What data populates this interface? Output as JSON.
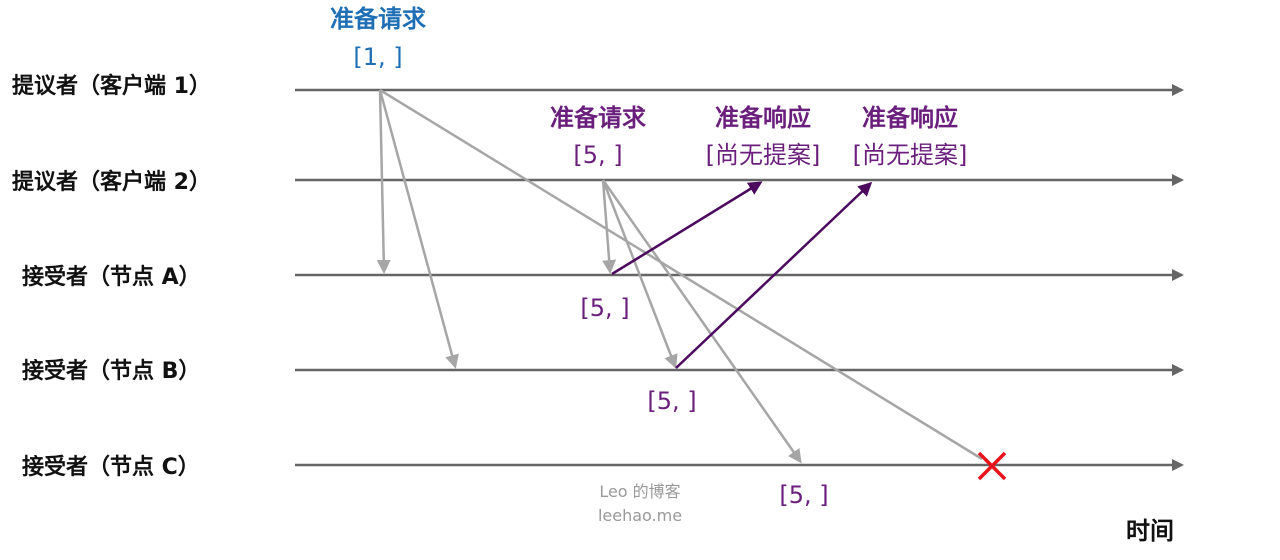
{
  "lanes": [
    {
      "label": "提议者（客户端 1）"
    },
    {
      "label": "提议者（客户端 2）"
    },
    {
      "label": "接受者（节点 A）"
    },
    {
      "label": "接受者（节点 B）"
    },
    {
      "label": "接受者（节点 C）"
    }
  ],
  "client1_request": {
    "title": "准备请求",
    "value": "[1, ]"
  },
  "client2_request": {
    "title": "准备请求",
    "value": "[5, ]"
  },
  "response_a": {
    "title": "准备响应",
    "value": "[尚无提案]"
  },
  "response_b": {
    "title": "准备响应",
    "value": "[尚无提案]"
  },
  "received": {
    "a": "[5, ]",
    "b": "[5, ]",
    "c": "[5, ]"
  },
  "watermark": {
    "line1": "Leo 的博客",
    "line2": "leehao.me"
  },
  "time_label": "时间",
  "colors": {
    "timeline": "#666666",
    "gray_arrow": "#a6a6a6",
    "purple": "#4b0a5e",
    "blue_text": "#1f6fb5",
    "purple_text": "#6b1f7c",
    "reject": "#e8141c"
  }
}
